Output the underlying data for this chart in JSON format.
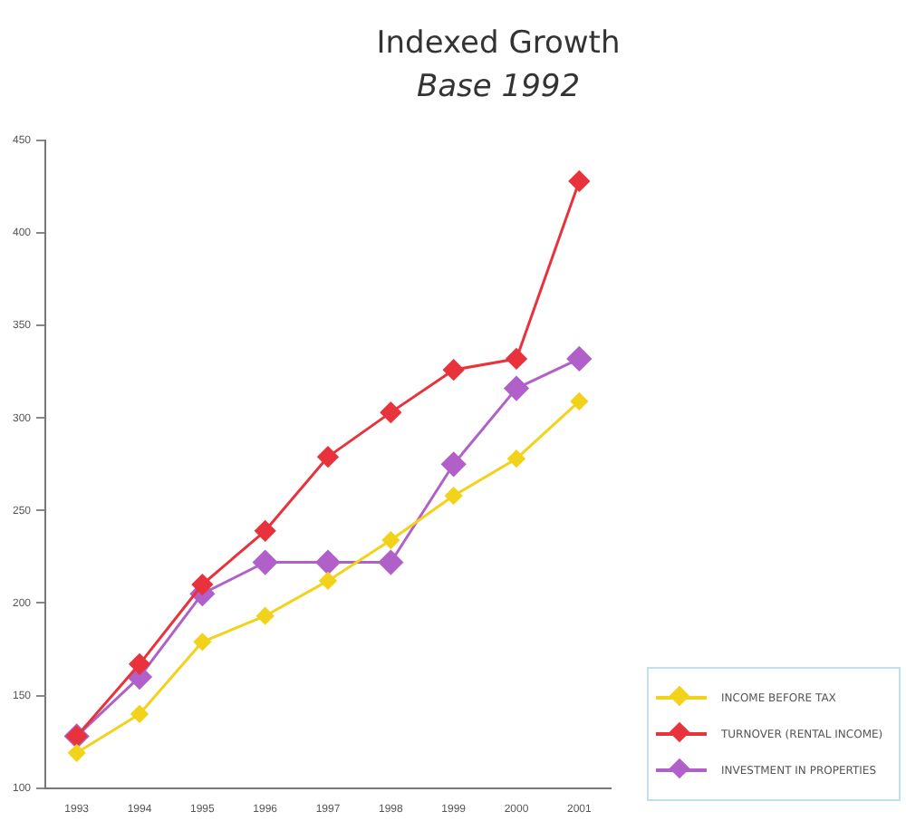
{
  "chart_data": {
    "type": "line",
    "title": "Indexed Growth",
    "subtitle": "Base 1992",
    "categories": [
      "1993",
      "1994",
      "1995",
      "1996",
      "1997",
      "1998",
      "1999",
      "2000",
      "2001"
    ],
    "series": [
      {
        "name": "INCOME BEFORE TAX",
        "color": "#f2d21a",
        "values": [
          119,
          140,
          179,
          193,
          212,
          234,
          258,
          278,
          309
        ]
      },
      {
        "name": "TURNOVER (RENTAL INCOME)",
        "color": "#e8323c",
        "values": [
          128,
          167,
          210,
          239,
          279,
          303,
          326,
          332,
          428
        ]
      },
      {
        "name": "INVESTMENT IN PROPERTIES",
        "color": "#b060c8",
        "values": [
          128,
          160,
          205,
          222,
          222,
          222,
          275,
          316,
          332
        ]
      }
    ],
    "ylim": [
      100,
      450
    ],
    "yticks": [
      100,
      150,
      200,
      250,
      300,
      350,
      400,
      450
    ],
    "grid": false,
    "legend": "bottom right",
    "marker": "diamond",
    "line_style": "solid"
  }
}
